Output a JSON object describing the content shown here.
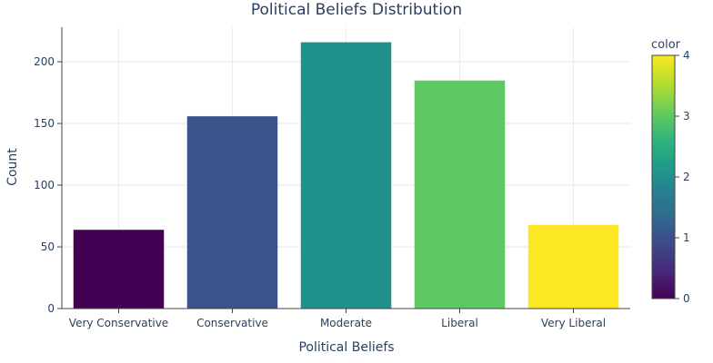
{
  "chart_data": {
    "type": "bar",
    "title": "Political Beliefs Distribution",
    "xlabel": "Political Beliefs",
    "ylabel": "Count",
    "categories": [
      "Very Conservative",
      "Conservative",
      "Moderate",
      "Liberal",
      "Very Liberal"
    ],
    "values": [
      64,
      156,
      216,
      185,
      68
    ],
    "color_values": [
      0,
      1,
      2,
      3,
      4
    ],
    "bar_colors": [
      "#440154",
      "#3b528b",
      "#21918c",
      "#5ec962",
      "#fde725"
    ],
    "ylim": [
      0,
      228
    ],
    "yticks": [
      0,
      50,
      100,
      150,
      200
    ],
    "grid": true,
    "colorbar": {
      "title": "color",
      "range": [
        0,
        4
      ],
      "ticks": [
        0,
        1,
        2,
        3,
        4
      ],
      "colorscale": [
        "#440154",
        "#482878",
        "#3e4989",
        "#31688e",
        "#26828e",
        "#1f9e89",
        "#35b779",
        "#6ece58",
        "#b5de2b",
        "#fde725"
      ]
    }
  }
}
